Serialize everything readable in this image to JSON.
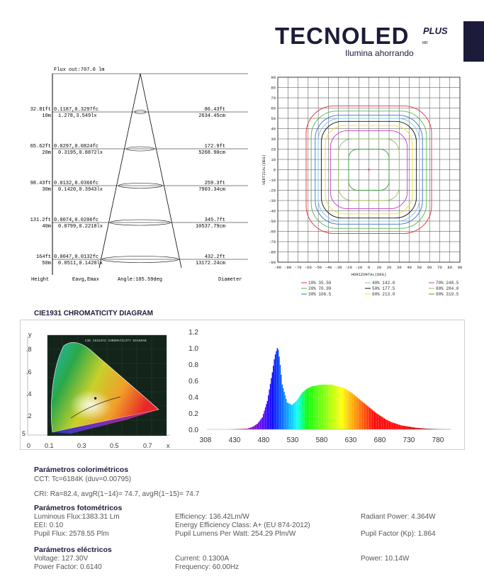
{
  "header": {
    "logo": "TECNOLED",
    "logo_plus": "PLUS",
    "logo_mr": "MR",
    "tagline": "Ilumina ahorrando"
  },
  "cone_diagram": {
    "top_label": "Flux out:707.0 lm",
    "rows": [
      {
        "height_ft": "32.81ft",
        "height_m": "10m",
        "e_fc": "0.1187,0.3297fc",
        "e_lx": "1.278,3.549lx",
        "diam_ft": "86.43ft",
        "diam_cm": "2634.45cm"
      },
      {
        "height_ft": "65.62ft",
        "height_m": "20m",
        "e_fc": "0.0297,0.0824fc",
        "e_lx": "0.3195,0.8872lx",
        "diam_ft": "172.9ft",
        "diam_cm": "5268.90cm"
      },
      {
        "height_ft": "98.43ft",
        "height_m": "30m",
        "e_fc": "0.0132,0.0366fc",
        "e_lx": "0.1420,0.3943lx",
        "diam_ft": "259.3ft",
        "diam_cm": "7903.34cm"
      },
      {
        "height_ft": "131.2ft",
        "height_m": "40m",
        "e_fc": "0.0074,0.0206fc",
        "e_lx": "0.0799,0.2218lx",
        "diam_ft": "345.7ft",
        "diam_cm": "10537.79cm"
      },
      {
        "height_ft": "164ft",
        "height_m": "50m",
        "e_fc": "0.0047,0.0132fc",
        "e_lx": "0.0511,0.1420lx",
        "diam_ft": "432.2ft",
        "diam_cm": "13172.24cm"
      }
    ],
    "footer": {
      "height": "Height",
      "eavg": "Eavg,Emax",
      "angle": "Angle:105.59deg",
      "diameter": "Diameter"
    }
  },
  "chart_data": [
    {
      "type": "contour",
      "xlabel": "HORIZONTAL(DEG)",
      "ylabel": "VERTICAL(DEG)",
      "xlim": [
        -90,
        90
      ],
      "ylim": [
        -90,
        90
      ],
      "xticks": [
        -90,
        -80,
        -70,
        -60,
        -50,
        -40,
        -30,
        -20,
        -10,
        0,
        10,
        20,
        30,
        40,
        50,
        60,
        70,
        80,
        90
      ],
      "yticks": [
        90,
        80,
        70,
        60,
        50,
        40,
        30,
        20,
        10,
        0,
        -10,
        -20,
        -30,
        -40,
        -50,
        -60,
        -70,
        -80,
        -90
      ],
      "grid": true,
      "legend_position": "bottom",
      "levels": [
        {
          "label": "10% 35.50",
          "color": "#e0303a",
          "half_width_deg": 62
        },
        {
          "label": "20% 70.99",
          "color": "#4fb84a",
          "half_width_deg": 57
        },
        {
          "label": "30% 106.5",
          "color": "#3a6fd0",
          "half_width_deg": 53
        },
        {
          "label": "40% 142.0",
          "color": "#79c8e8",
          "half_width_deg": 50
        },
        {
          "label": "50% 177.5",
          "color": "#111111",
          "half_width_deg": 47
        },
        {
          "label": "60% 213.0",
          "color": "#e8e02a",
          "half_width_deg": 43
        },
        {
          "label": "70% 248.5",
          "color": "#c038b8",
          "half_width_deg": 38
        },
        {
          "label": "80% 284.0",
          "color": "#98b85a",
          "half_width_deg": 30
        },
        {
          "label": "90% 319.5",
          "color": "#3a9a3a",
          "half_width_deg": 20
        }
      ]
    },
    {
      "type": "diagram",
      "title": "CIE1931 CHROMATICITY DIAGRAM",
      "inner_title": "CIE 1931XYZ CHROMATICITY DIAGRAM",
      "ylabel": "y",
      "xlabel": "x",
      "yticks": [
        ".8",
        ".6",
        ".4",
        ".2"
      ],
      "xticks": [
        "0",
        "0.1",
        "0.3",
        "0.5",
        "0.7"
      ],
      "left_mark": "5",
      "point": {
        "x": 0.322,
        "y": 0.335
      }
    },
    {
      "type": "area",
      "x": [
        308,
        330,
        350,
        370,
        390,
        400,
        410,
        420,
        430,
        440,
        445,
        450,
        452,
        455,
        460,
        470,
        480,
        490,
        500,
        510,
        520,
        530,
        540,
        550,
        560,
        570,
        580,
        590,
        600,
        610,
        620,
        630,
        640,
        650,
        660,
        670,
        680,
        690,
        700,
        710,
        720,
        730,
        740,
        750,
        760,
        770,
        780,
        790,
        800
      ],
      "values": [
        0.0,
        0.0,
        0.0,
        0.005,
        0.01,
        0.03,
        0.07,
        0.15,
        0.35,
        0.7,
        0.9,
        1.0,
        0.98,
        0.85,
        0.55,
        0.33,
        0.3,
        0.36,
        0.45,
        0.5,
        0.53,
        0.54,
        0.55,
        0.55,
        0.55,
        0.53,
        0.52,
        0.49,
        0.45,
        0.4,
        0.35,
        0.3,
        0.25,
        0.2,
        0.16,
        0.12,
        0.09,
        0.07,
        0.05,
        0.04,
        0.03,
        0.02,
        0.015,
        0.01,
        0.007,
        0.005,
        0.003,
        0.002,
        0.001
      ],
      "xticks": [
        "308",
        "430",
        "480",
        "530",
        "580",
        "630",
        "680",
        "730",
        "780"
      ],
      "yticks": [
        "0.0",
        "0.2",
        "0.4",
        "0.6",
        "0.8",
        "1.0",
        "1.2"
      ],
      "xlim": [
        308,
        800
      ],
      "ylim": [
        0,
        1.2
      ]
    }
  ],
  "params": {
    "color_title": "Parámetros colorimétricos",
    "cct": "CCT: Tc=6184K (duv=0.00795)",
    "cri": "CRI: Ra=82.4, avgR(1−14)= 74.7, avgR(1−15)= 74.7",
    "photo_title": "Parámetros fotométricos",
    "luminous_flux": "Luminous Flux:1383.31 Lm",
    "eei": "EEI: 0.10",
    "pupil_flux": "Pupil Flux: 2578.55 Plm",
    "efficiency": "Efficiency: 136.42Lm/W",
    "energy_class": "Energy Efficiency Class: A+ (EU 874-2012)",
    "pupil_lumens": "Pupil Lumens Per Watt: 254.29 Plm/W",
    "radiant_power": "Radiant Power: 4.364W",
    "pupil_factor": "Pupil Factor (Kp): 1.864",
    "elec_title": "Parámetros eléctricos",
    "voltage": "Voltage: 127.30V",
    "power_factor": "Power Factor: 0.6140",
    "current": "Current: 0.1300A",
    "frequency": "Frequency: 60.00Hz",
    "power": "Power: 10.14W"
  }
}
